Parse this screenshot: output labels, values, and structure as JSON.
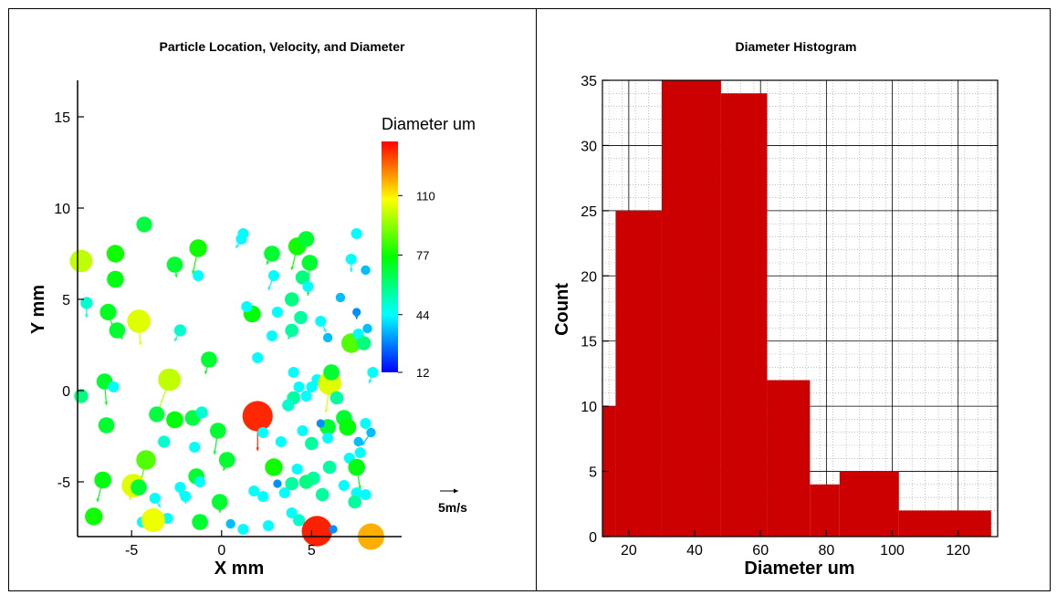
{
  "chart_data": [
    {
      "type": "scatter",
      "title": "Particle Location, Velocity, and Diameter",
      "xlabel": "X mm",
      "ylabel": "Y mm",
      "xlim": [
        -8,
        10
      ],
      "ylim": [
        -8,
        17
      ],
      "xticks": [
        "-5",
        "0",
        "5"
      ],
      "xtick_values": [
        -5,
        0,
        5
      ],
      "yticks": [
        "-5",
        "0",
        "5",
        "10",
        "15"
      ],
      "ytick_values": [
        -5,
        0,
        5,
        10,
        15
      ],
      "grid": false,
      "colorbar": {
        "title": "Diameter um",
        "range": [
          12,
          140
        ],
        "ticks": [
          "12",
          "44",
          "77",
          "110"
        ],
        "tick_values": [
          12,
          44,
          77,
          110
        ]
      },
      "vector_reference": {
        "label": "5m/s",
        "magnitude": 5
      },
      "points": [
        {
          "x": -7.8,
          "y": 7.1,
          "d": 100,
          "u": 0,
          "v": -0.5
        },
        {
          "x": -7.5,
          "y": 4.8,
          "d": 50,
          "u": 0,
          "v": -0.8
        },
        {
          "x": -6.3,
          "y": 4.3,
          "d": 72,
          "u": 0.3,
          "v": -1.0
        },
        {
          "x": -5.9,
          "y": 6.1,
          "d": 74,
          "u": 0,
          "v": -0.3
        },
        {
          "x": -5.8,
          "y": 3.3,
          "d": 70,
          "u": 0.3,
          "v": -0.5
        },
        {
          "x": -5.9,
          "y": 7.5,
          "d": 78,
          "u": 0,
          "v": 0
        },
        {
          "x": -4.6,
          "y": 3.8,
          "d": 104,
          "u": 0.1,
          "v": -1.3
        },
        {
          "x": -4.3,
          "y": 9.1,
          "d": 68,
          "u": 0,
          "v": 0
        },
        {
          "x": -2.6,
          "y": 6.9,
          "d": 70,
          "u": 0.1,
          "v": -0.7
        },
        {
          "x": -2.3,
          "y": 3.3,
          "d": 50,
          "u": -0.3,
          "v": -0.6
        },
        {
          "x": -1.3,
          "y": 7.8,
          "d": 78,
          "u": -0.3,
          "v": -1.4
        },
        {
          "x": -1.3,
          "y": 6.3,
          "d": 44,
          "u": 0,
          "v": 0
        },
        {
          "x": -0.7,
          "y": 1.7,
          "d": 70,
          "u": -0.2,
          "v": -0.8
        },
        {
          "x": -2.9,
          "y": 0.6,
          "d": 100,
          "u": -0.6,
          "v": -1.7
        },
        {
          "x": -3.6,
          "y": -1.3,
          "d": 68,
          "u": 0,
          "v": 0
        },
        {
          "x": -2.6,
          "y": -1.6,
          "d": 75,
          "u": 0,
          "v": 0
        },
        {
          "x": -1.6,
          "y": -1.5,
          "d": 68,
          "u": 0,
          "v": 0
        },
        {
          "x": -1.1,
          "y": -1.2,
          "d": 50,
          "u": 0,
          "v": 0
        },
        {
          "x": -3.2,
          "y": -2.8,
          "d": 50,
          "u": 0,
          "v": 0
        },
        {
          "x": -1.5,
          "y": -3.1,
          "d": 44,
          "u": 0,
          "v": 0
        },
        {
          "x": -0.2,
          "y": -2.2,
          "d": 70,
          "u": -0.2,
          "v": -1.3
        },
        {
          "x": 0.3,
          "y": -3.8,
          "d": 70,
          "u": -0.2,
          "v": -0.6
        },
        {
          "x": -4.2,
          "y": -3.8,
          "d": 86,
          "u": -0.3,
          "v": -1.3
        },
        {
          "x": -4.9,
          "y": -5.2,
          "d": 104,
          "u": -0.2,
          "v": -0.8
        },
        {
          "x": -4.6,
          "y": -5.3,
          "d": 70,
          "u": 0,
          "v": 0
        },
        {
          "x": -6.6,
          "y": -4.9,
          "d": 74,
          "u": -0.3,
          "v": -1.2
        },
        {
          "x": -7.1,
          "y": -6.9,
          "d": 78,
          "u": 0,
          "v": 0
        },
        {
          "x": -3.7,
          "y": -5.9,
          "d": 44,
          "u": 0.3,
          "v": -0.5
        },
        {
          "x": -2.3,
          "y": -5.3,
          "d": 44,
          "u": 0,
          "v": -0.5
        },
        {
          "x": -2.0,
          "y": -5.8,
          "d": 44,
          "u": 0,
          "v": -0.4
        },
        {
          "x": -1.4,
          "y": -4.7,
          "d": 70,
          "u": 0.3,
          "v": -0.5
        },
        {
          "x": -1.2,
          "y": -5.0,
          "d": 44,
          "u": 0,
          "v": 0
        },
        {
          "x": -0.1,
          "y": -6.1,
          "d": 70,
          "u": 0,
          "v": -0.6
        },
        {
          "x": -1.2,
          "y": -7.2,
          "d": 70,
          "u": 0,
          "v": 0
        },
        {
          "x": -3.0,
          "y": -7.0,
          "d": 44,
          "u": 0,
          "v": 0
        },
        {
          "x": -4.4,
          "y": -7.2,
          "d": 44,
          "u": 0,
          "v": 0
        },
        {
          "x": -3.8,
          "y": -7.1,
          "d": 106,
          "u": 0,
          "v": 0
        },
        {
          "x": -6.5,
          "y": 0.5,
          "d": 70,
          "u": 0.1,
          "v": -1.3
        },
        {
          "x": -6.0,
          "y": 0.2,
          "d": 44,
          "u": 0,
          "v": 0
        },
        {
          "x": -6.4,
          "y": -1.9,
          "d": 70,
          "u": 0,
          "v": 0
        },
        {
          "x": -7.8,
          "y": -0.3,
          "d": 60,
          "u": 0,
          "v": 0
        },
        {
          "x": 1.1,
          "y": 8.3,
          "d": 44,
          "u": -0.3,
          "v": -0.5
        },
        {
          "x": 1.2,
          "y": 8.6,
          "d": 44,
          "u": 0,
          "v": 0
        },
        {
          "x": 2.8,
          "y": 7.5,
          "d": 70,
          "u": -0.3,
          "v": -0.6
        },
        {
          "x": 4.2,
          "y": 7.9,
          "d": 78,
          "u": -0.3,
          "v": -1.3
        },
        {
          "x": 4.7,
          "y": 8.3,
          "d": 70,
          "u": 0,
          "v": 0
        },
        {
          "x": 4.9,
          "y": 7.0,
          "d": 70,
          "u": -0.1,
          "v": -1.8
        },
        {
          "x": 2.9,
          "y": 6.3,
          "d": 44,
          "u": -0.3,
          "v": -0.8
        },
        {
          "x": 4.5,
          "y": 6.2,
          "d": 60,
          "u": 0,
          "v": 0
        },
        {
          "x": 4.8,
          "y": 5.7,
          "d": 44,
          "u": 0,
          "v": 0
        },
        {
          "x": 3.9,
          "y": 5.0,
          "d": 60,
          "u": 0,
          "v": 0
        },
        {
          "x": 4.4,
          "y": 4.0,
          "d": 56,
          "u": 0,
          "v": 0
        },
        {
          "x": 1.7,
          "y": 4.2,
          "d": 75,
          "u": 0,
          "v": 0
        },
        {
          "x": 1.4,
          "y": 4.6,
          "d": 44,
          "u": 0,
          "v": 0
        },
        {
          "x": 3.1,
          "y": 4.3,
          "d": 44,
          "u": 0,
          "v": 0
        },
        {
          "x": 3.9,
          "y": 3.3,
          "d": 56,
          "u": -0.2,
          "v": -0.5
        },
        {
          "x": 2.8,
          "y": 3.0,
          "d": 44,
          "u": 0,
          "v": 0
        },
        {
          "x": 5.5,
          "y": 3.8,
          "d": 44,
          "u": 0.3,
          "v": -0.6
        },
        {
          "x": 5.9,
          "y": 2.9,
          "d": 36,
          "u": 0,
          "v": 0
        },
        {
          "x": 7.2,
          "y": 2.6,
          "d": 86,
          "u": 0,
          "v": 0
        },
        {
          "x": 7.6,
          "y": 3.1,
          "d": 44,
          "u": 0,
          "v": 0
        },
        {
          "x": 7.9,
          "y": 2.6,
          "d": 60,
          "u": 0,
          "v": 0
        },
        {
          "x": 8.1,
          "y": 3.4,
          "d": 36,
          "u": 0,
          "v": 0
        },
        {
          "x": 7.2,
          "y": 7.2,
          "d": 44,
          "u": 0,
          "v": -0.7
        },
        {
          "x": 7.5,
          "y": 8.6,
          "d": 44,
          "u": 0,
          "v": 0
        },
        {
          "x": 8.0,
          "y": 6.6,
          "d": 36,
          "u": 0,
          "v": 0
        },
        {
          "x": 6.6,
          "y": 5.1,
          "d": 36,
          "u": 0,
          "v": 0
        },
        {
          "x": 7.5,
          "y": 4.3,
          "d": 30,
          "u": 0,
          "v": -0.4
        },
        {
          "x": 2.0,
          "y": 1.8,
          "d": 44,
          "u": 0,
          "v": 0
        },
        {
          "x": 4.0,
          "y": 1.0,
          "d": 44,
          "u": 0,
          "v": 0
        },
        {
          "x": 5.3,
          "y": 0.6,
          "d": 44,
          "u": 0,
          "v": 0
        },
        {
          "x": 5.0,
          "y": 0.2,
          "d": 44,
          "u": 0,
          "v": 0
        },
        {
          "x": 4.3,
          "y": 0.2,
          "d": 44,
          "u": 0,
          "v": 0
        },
        {
          "x": 4.7,
          "y": -0.3,
          "d": 44,
          "u": 0,
          "v": 0
        },
        {
          "x": 4.0,
          "y": -0.4,
          "d": 56,
          "u": 0,
          "v": 0
        },
        {
          "x": 3.7,
          "y": -0.8,
          "d": 50,
          "u": 0,
          "v": 0
        },
        {
          "x": 6.0,
          "y": 0.4,
          "d": 104,
          "u": -0.2,
          "v": -1.6
        },
        {
          "x": 6.1,
          "y": 1.0,
          "d": 70,
          "u": 0,
          "v": 0
        },
        {
          "x": 6.4,
          "y": -0.4,
          "d": 56,
          "u": 0,
          "v": 0
        },
        {
          "x": 6.8,
          "y": -1.5,
          "d": 70,
          "u": 0,
          "v": 0
        },
        {
          "x": 5.9,
          "y": -2.0,
          "d": 70,
          "u": 0,
          "v": 0
        },
        {
          "x": 7.0,
          "y": -2.0,
          "d": 75,
          "u": 0,
          "v": 0
        },
        {
          "x": 8.4,
          "y": 1.0,
          "d": 44,
          "u": -0.2,
          "v": -0.6
        },
        {
          "x": 8.0,
          "y": -1.8,
          "d": 44,
          "u": 0,
          "v": 0
        },
        {
          "x": 5.5,
          "y": -1.8,
          "d": 30,
          "u": 0,
          "v": 0
        },
        {
          "x": 2.0,
          "y": -1.4,
          "d": 135,
          "u": 0,
          "v": -1.9
        },
        {
          "x": 2.3,
          "y": -2.3,
          "d": 44,
          "u": 0,
          "v": 0
        },
        {
          "x": 3.3,
          "y": -2.8,
          "d": 44,
          "u": 0,
          "v": 0
        },
        {
          "x": 4.5,
          "y": -2.2,
          "d": 44,
          "u": 0,
          "v": 0
        },
        {
          "x": 5.0,
          "y": -2.9,
          "d": 56,
          "u": 0,
          "v": 0
        },
        {
          "x": 5.9,
          "y": -2.6,
          "d": 44,
          "u": 0,
          "v": 0
        },
        {
          "x": 2.9,
          "y": -4.2,
          "d": 78,
          "u": 0,
          "v": 0
        },
        {
          "x": 4.2,
          "y": -4.3,
          "d": 44,
          "u": 0,
          "v": 0
        },
        {
          "x": 5.1,
          "y": -4.8,
          "d": 56,
          "u": 0,
          "v": 0
        },
        {
          "x": 6.0,
          "y": -4.2,
          "d": 56,
          "u": 0,
          "v": 0
        },
        {
          "x": 7.1,
          "y": -3.7,
          "d": 44,
          "u": 0,
          "v": 0
        },
        {
          "x": 7.5,
          "y": -4.2,
          "d": 74,
          "u": 0.2,
          "v": -1.2
        },
        {
          "x": 7.7,
          "y": -3.4,
          "d": 44,
          "u": 0,
          "v": 0
        },
        {
          "x": 7.6,
          "y": -2.8,
          "d": 36,
          "u": 0,
          "v": 0
        },
        {
          "x": 8.3,
          "y": -2.3,
          "d": 36,
          "u": -0.5,
          "v": -0.7
        },
        {
          "x": 1.8,
          "y": -5.5,
          "d": 44,
          "u": 0,
          "v": 0
        },
        {
          "x": 2.3,
          "y": -5.8,
          "d": 44,
          "u": 0,
          "v": 0
        },
        {
          "x": 3.5,
          "y": -5.6,
          "d": 44,
          "u": 0,
          "v": 0
        },
        {
          "x": 3.9,
          "y": -5.1,
          "d": 56,
          "u": 0,
          "v": 0
        },
        {
          "x": 4.7,
          "y": -5.0,
          "d": 60,
          "u": 0,
          "v": 0
        },
        {
          "x": 5.6,
          "y": -5.7,
          "d": 56,
          "u": 0,
          "v": 0
        },
        {
          "x": 6.8,
          "y": -5.2,
          "d": 44,
          "u": 0,
          "v": 0
        },
        {
          "x": 7.5,
          "y": -5.6,
          "d": 44,
          "u": 0,
          "v": 0
        },
        {
          "x": 7.4,
          "y": -6.1,
          "d": 56,
          "u": 0,
          "v": 0
        },
        {
          "x": 8.0,
          "y": -5.7,
          "d": 44,
          "u": 0,
          "v": 0
        },
        {
          "x": 3.1,
          "y": -5.1,
          "d": 30,
          "u": 0,
          "v": 0
        },
        {
          "x": 0.5,
          "y": -7.3,
          "d": 36,
          "u": 0,
          "v": 0
        },
        {
          "x": 1.2,
          "y": -7.6,
          "d": 44,
          "u": 0,
          "v": 0
        },
        {
          "x": 2.6,
          "y": -7.4,
          "d": 44,
          "u": 0,
          "v": 0
        },
        {
          "x": 3.9,
          "y": -6.7,
          "d": 44,
          "u": 0,
          "v": 0
        },
        {
          "x": 4.3,
          "y": -7.1,
          "d": 50,
          "u": 0,
          "v": 0
        },
        {
          "x": 5.3,
          "y": -7.7,
          "d": 136,
          "u": 0,
          "v": 0
        },
        {
          "x": 6.2,
          "y": -7.6,
          "d": 30,
          "u": 0,
          "v": 0
        },
        {
          "x": 8.3,
          "y": -8.0,
          "d": 118,
          "u": 0,
          "v": 0
        }
      ]
    },
    {
      "type": "bar",
      "title": "Diameter Histogram",
      "xlabel": "Diameter um",
      "ylabel": "Count",
      "xlim": [
        12,
        132
      ],
      "ylim": [
        0,
        35
      ],
      "xticks": [
        "20",
        "40",
        "60",
        "80",
        "100",
        "120"
      ],
      "xtick_values": [
        20,
        40,
        60,
        80,
        100,
        120
      ],
      "yticks": [
        "0",
        "5",
        "10",
        "15",
        "20",
        "25",
        "30",
        "35"
      ],
      "ytick_values": [
        0,
        5,
        10,
        15,
        20,
        25,
        30,
        35
      ],
      "grid": true,
      "bar_color": "#cc0000",
      "bins": [
        {
          "start": 12,
          "end": 16,
          "value": 10
        },
        {
          "start": 16,
          "end": 30,
          "value": 25
        },
        {
          "start": 30,
          "end": 48,
          "value": 35
        },
        {
          "start": 48,
          "end": 62,
          "value": 34
        },
        {
          "start": 62,
          "end": 75,
          "value": 12
        },
        {
          "start": 75,
          "end": 84,
          "value": 4
        },
        {
          "start": 84,
          "end": 102,
          "value": 5
        },
        {
          "start": 102,
          "end": 130,
          "value": 2
        }
      ]
    }
  ]
}
